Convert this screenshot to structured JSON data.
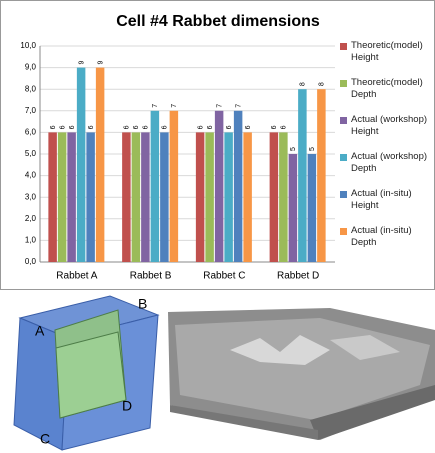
{
  "chart_data": {
    "type": "bar",
    "title": "Cell #4 Rabbet dimensions",
    "categories": [
      "Rabbet A",
      "Rabbet B",
      "Rabbet C",
      "Rabbet D"
    ],
    "series": [
      {
        "name": "Theoretic(model) Height",
        "color": "#c0504d",
        "values": [
          6,
          6,
          6,
          6
        ]
      },
      {
        "name": "Theoretic(model) Depth",
        "color": "#9bbb59",
        "values": [
          6,
          6,
          6,
          6
        ]
      },
      {
        "name": "Actual (workshop) Height",
        "color": "#8064a2",
        "values": [
          6,
          6,
          7,
          5
        ]
      },
      {
        "name": "Actual (workshop) Depth",
        "color": "#4bacc6",
        "values": [
          9,
          7,
          6,
          8
        ]
      },
      {
        "name": "Actual (in-situ) Height",
        "color": "#4f81bd",
        "values": [
          6,
          6,
          7,
          5
        ]
      },
      {
        "name": "Actual (in-situ) Depth",
        "color": "#f79646",
        "values": [
          9,
          7,
          6,
          8
        ]
      }
    ],
    "ylim": [
      0,
      10
    ],
    "yticks": [
      {
        "value": 0,
        "label": "0,0"
      },
      {
        "value": 1,
        "label": "1,0"
      },
      {
        "value": 2,
        "label": "2,0"
      },
      {
        "value": 3,
        "label": "3,0"
      },
      {
        "value": 4,
        "label": "4,0"
      },
      {
        "value": 5,
        "label": "5,0"
      },
      {
        "value": 6,
        "label": "6,0"
      },
      {
        "value": 7,
        "label": "7,0"
      },
      {
        "value": 8,
        "label": "8,0"
      },
      {
        "value": 9,
        "label": "9,0"
      },
      {
        "value": 10,
        "label": "10,0"
      }
    ],
    "grid": true,
    "legend": "right"
  },
  "figure_labels": [
    "A",
    "B",
    "C",
    "D"
  ]
}
